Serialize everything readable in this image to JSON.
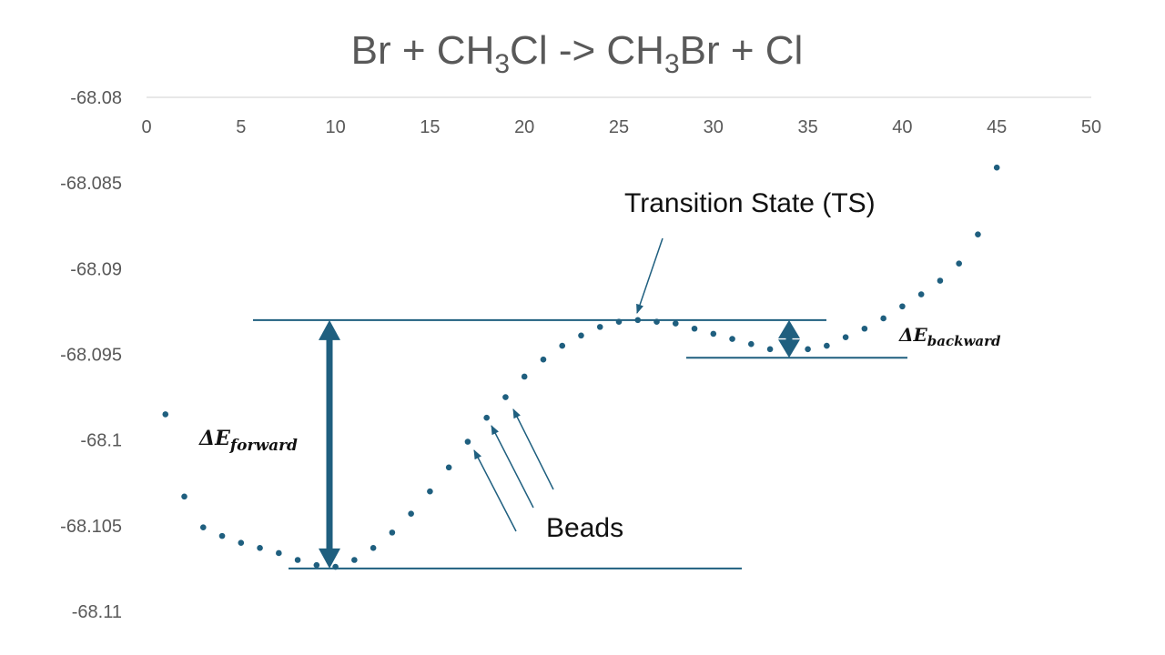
{
  "chart_data": {
    "type": "scatter",
    "title": {
      "parts": [
        {
          "text": "Br + CH",
          "sub": false
        },
        {
          "text": "3",
          "sub": true
        },
        {
          "text": "Cl -> CH",
          "sub": false
        },
        {
          "text": "3",
          "sub": true
        },
        {
          "text": "Br + Cl",
          "sub": false
        }
      ]
    },
    "xlabel": "",
    "ylabel": "",
    "xlim": [
      0,
      50
    ],
    "ylim": [
      -68.11,
      -68.08
    ],
    "x_ticks": [
      "0",
      "5",
      "10",
      "15",
      "20",
      "25",
      "30",
      "35",
      "40",
      "45",
      "50"
    ],
    "y_ticks": [
      "-68.08",
      "-68.085",
      "-68.09",
      "-68.095",
      "-68.1",
      "-68.105",
      "-68.11"
    ],
    "x_axis_position": "top",
    "grid": false,
    "legend": "none",
    "marker_color": "#1f5f7f",
    "points": [
      [
        1,
        -68.0985
      ],
      [
        2,
        -68.1033
      ],
      [
        3,
        -68.1051
      ],
      [
        4,
        -68.1056
      ],
      [
        5,
        -68.106
      ],
      [
        6,
        -68.1063
      ],
      [
        7,
        -68.1066
      ],
      [
        8,
        -68.107
      ],
      [
        9,
        -68.1073
      ],
      [
        10,
        -68.1074
      ],
      [
        11,
        -68.107
      ],
      [
        12,
        -68.1063
      ],
      [
        13,
        -68.1054
      ],
      [
        14,
        -68.1043
      ],
      [
        15,
        -68.103
      ],
      [
        16,
        -68.1016
      ],
      [
        17,
        -68.1001
      ],
      [
        18,
        -68.0987
      ],
      [
        19,
        -68.0975
      ],
      [
        20,
        -68.0963
      ],
      [
        21,
        -68.0953
      ],
      [
        22,
        -68.0945
      ],
      [
        23,
        -68.0939
      ],
      [
        24,
        -68.0934
      ],
      [
        25,
        -68.0931
      ],
      [
        26,
        -68.093
      ],
      [
        27,
        -68.0931
      ],
      [
        28,
        -68.0932
      ],
      [
        29,
        -68.0935
      ],
      [
        30,
        -68.0938
      ],
      [
        31,
        -68.0941
      ],
      [
        32,
        -68.0944
      ],
      [
        33,
        -68.0947
      ],
      [
        34,
        -68.0948
      ],
      [
        35,
        -68.0947
      ],
      [
        36,
        -68.0945
      ],
      [
        37,
        -68.094
      ],
      [
        38,
        -68.0935
      ],
      [
        39,
        -68.0929
      ],
      [
        40,
        -68.0922
      ],
      [
        41,
        -68.0915
      ],
      [
        42,
        -68.0907
      ],
      [
        43,
        -68.0897
      ],
      [
        44,
        -68.088
      ],
      [
        45,
        -68.0841
      ]
    ],
    "annotations": {
      "transition_state": "Transition State (TS)",
      "beads": "Beads",
      "delta_forward": {
        "symbol": "ΔE",
        "subscript": "forward"
      },
      "delta_backward": {
        "symbol": "ΔE",
        "subscript": "backward"
      },
      "levels": {
        "ts": -68.093,
        "reactant_min": -68.1075,
        "product_min": -68.0952
      },
      "color": "#1f5f7f"
    }
  }
}
